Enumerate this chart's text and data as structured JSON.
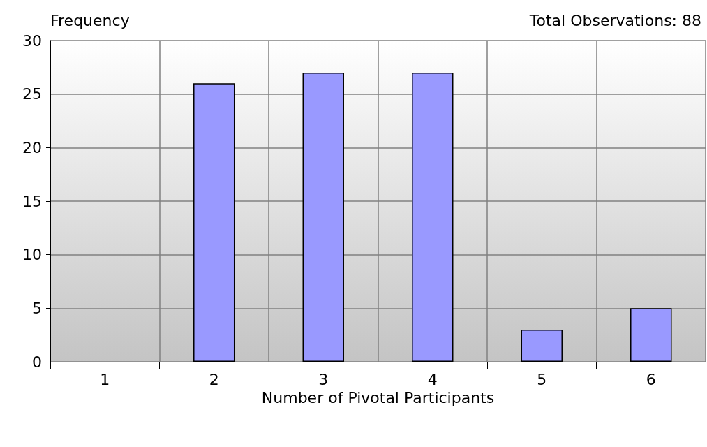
{
  "chart_data": {
    "type": "bar",
    "xlabel": "Number of Pivotal Participants",
    "ylabel": "Frequency",
    "annotations": [
      "Total Observations: 88"
    ],
    "categories": [
      "1",
      "2",
      "3",
      "4",
      "5",
      "6"
    ],
    "values": [
      0,
      26,
      27,
      27,
      3,
      5
    ],
    "color": "#9999ff",
    "ylim": [
      0,
      30
    ],
    "yticks": [
      0,
      5,
      10,
      15,
      20,
      25,
      30
    ],
    "grid": true
  }
}
